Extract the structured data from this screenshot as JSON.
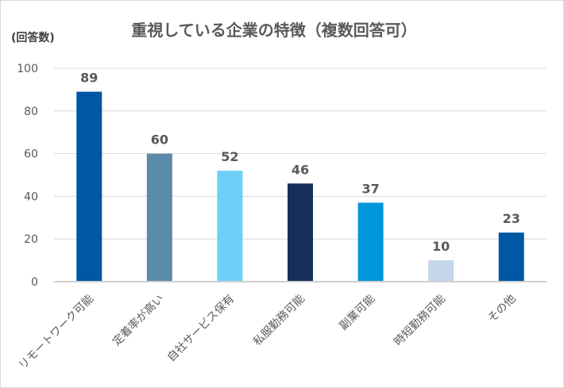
{
  "chart_data": {
    "type": "bar",
    "title": "重視している企業の特徴（複数回答可）",
    "ylabel": "(回答数)",
    "xlabel": "",
    "ylim": [
      0,
      100
    ],
    "yticks": [
      0,
      20,
      40,
      60,
      80,
      100
    ],
    "grid": true,
    "categories": [
      "リモートワーク可能",
      "定着率が高い",
      "自社サービス保有",
      "私服勤務可能",
      "副業可能",
      "時短勤務可能",
      "その他"
    ],
    "values": [
      89,
      60,
      52,
      46,
      37,
      10,
      23
    ],
    "colors": [
      "#0057A3",
      "#5B8BA8",
      "#6DD0F7",
      "#17305B",
      "#0096DB",
      "#C5D5EB",
      "#0057A3"
    ]
  }
}
